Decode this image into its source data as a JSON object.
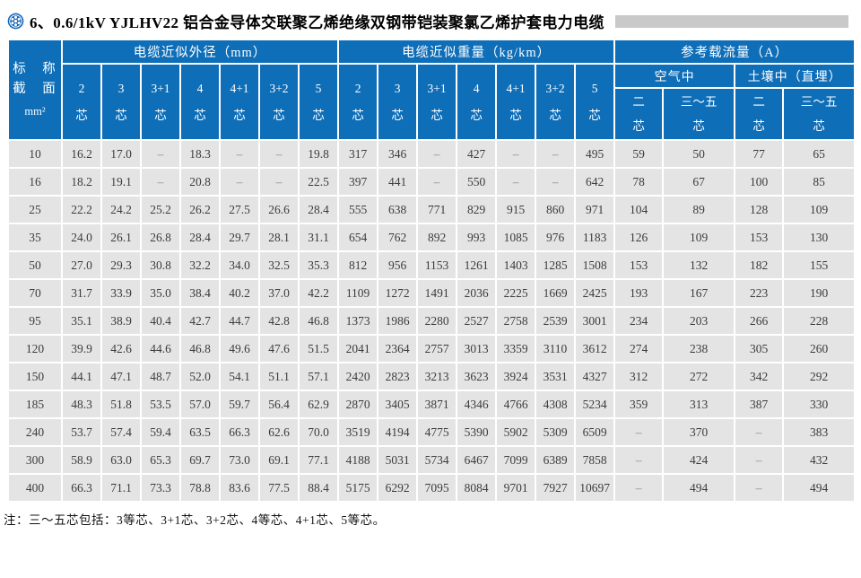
{
  "title": {
    "icon": "cable-cross-section-icon",
    "text": "6、0.6/1kV YJLHV22 铝合金导体交联聚乙烯绝缘双钢带铠装聚氯乙烯护套电力电缆"
  },
  "note": "注：三～五芯包括：3等芯、3+1芯、3+2芯、4等芯、4+1芯、5等芯。",
  "colors": {
    "header_blue": "#0e6eb8",
    "row_gray": "#e4e4e4",
    "title_rule_gray": "#c9c9c9",
    "icon_blue": "#1565b8"
  },
  "table": {
    "section_header": {
      "line1": "标　称",
      "line2": "截　面",
      "unit": "mm²"
    },
    "core_suffix": "芯",
    "groups": [
      {
        "label": "电缆近似外径（mm）",
        "cols": [
          "2",
          "3",
          "3+1",
          "4",
          "4+1",
          "3+2",
          "5"
        ]
      },
      {
        "label": "电缆近似重量（kg/km）",
        "cols": [
          "2",
          "3",
          "3+1",
          "4",
          "4+1",
          "3+2",
          "5"
        ]
      },
      {
        "label": "参考载流量（A）",
        "subgroups": [
          {
            "label": "空气中",
            "cols": [
              "二",
              "三～五"
            ]
          },
          {
            "label": "土壤中（直埋）",
            "cols": [
              "二",
              "三～五"
            ]
          }
        ]
      }
    ],
    "rows": [
      {
        "size": "10",
        "diameter": [
          "16.2",
          "17.0",
          "–",
          "18.3",
          "–",
          "–",
          "19.8"
        ],
        "weight": [
          "317",
          "346",
          "–",
          "427",
          "–",
          "–",
          "495"
        ],
        "ampacity": [
          "59",
          "50",
          "77",
          "65"
        ]
      },
      {
        "size": "16",
        "diameter": [
          "18.2",
          "19.1",
          "–",
          "20.8",
          "–",
          "–",
          "22.5"
        ],
        "weight": [
          "397",
          "441",
          "–",
          "550",
          "–",
          "–",
          "642"
        ],
        "ampacity": [
          "78",
          "67",
          "100",
          "85"
        ]
      },
      {
        "size": "25",
        "diameter": [
          "22.2",
          "24.2",
          "25.2",
          "26.2",
          "27.5",
          "26.6",
          "28.4"
        ],
        "weight": [
          "555",
          "638",
          "771",
          "829",
          "915",
          "860",
          "971"
        ],
        "ampacity": [
          "104",
          "89",
          "128",
          "109"
        ]
      },
      {
        "size": "35",
        "diameter": [
          "24.0",
          "26.1",
          "26.8",
          "28.4",
          "29.7",
          "28.1",
          "31.1"
        ],
        "weight": [
          "654",
          "762",
          "892",
          "993",
          "1085",
          "976",
          "1183"
        ],
        "ampacity": [
          "126",
          "109",
          "153",
          "130"
        ]
      },
      {
        "size": "50",
        "diameter": [
          "27.0",
          "29.3",
          "30.8",
          "32.2",
          "34.0",
          "32.5",
          "35.3"
        ],
        "weight": [
          "812",
          "956",
          "1153",
          "1261",
          "1403",
          "1285",
          "1508"
        ],
        "ampacity": [
          "153",
          "132",
          "182",
          "155"
        ]
      },
      {
        "size": "70",
        "diameter": [
          "31.7",
          "33.9",
          "35.0",
          "38.4",
          "40.2",
          "37.0",
          "42.2"
        ],
        "weight": [
          "1109",
          "1272",
          "1491",
          "2036",
          "2225",
          "1669",
          "2425"
        ],
        "ampacity": [
          "193",
          "167",
          "223",
          "190"
        ]
      },
      {
        "size": "95",
        "diameter": [
          "35.1",
          "38.9",
          "40.4",
          "42.7",
          "44.7",
          "42.8",
          "46.8"
        ],
        "weight": [
          "1373",
          "1986",
          "2280",
          "2527",
          "2758",
          "2539",
          "3001"
        ],
        "ampacity": [
          "234",
          "203",
          "266",
          "228"
        ]
      },
      {
        "size": "120",
        "diameter": [
          "39.9",
          "42.6",
          "44.6",
          "46.8",
          "49.6",
          "47.6",
          "51.5"
        ],
        "weight": [
          "2041",
          "2364",
          "2757",
          "3013",
          "3359",
          "3110",
          "3612"
        ],
        "ampacity": [
          "274",
          "238",
          "305",
          "260"
        ]
      },
      {
        "size": "150",
        "diameter": [
          "44.1",
          "47.1",
          "48.7",
          "52.0",
          "54.1",
          "51.1",
          "57.1"
        ],
        "weight": [
          "2420",
          "2823",
          "3213",
          "3623",
          "3924",
          "3531",
          "4327"
        ],
        "ampacity": [
          "312",
          "272",
          "342",
          "292"
        ]
      },
      {
        "size": "185",
        "diameter": [
          "48.3",
          "51.8",
          "53.5",
          "57.0",
          "59.7",
          "56.4",
          "62.9"
        ],
        "weight": [
          "2870",
          "3405",
          "3871",
          "4346",
          "4766",
          "4308",
          "5234"
        ],
        "ampacity": [
          "359",
          "313",
          "387",
          "330"
        ]
      },
      {
        "size": "240",
        "diameter": [
          "53.7",
          "57.4",
          "59.4",
          "63.5",
          "66.3",
          "62.6",
          "70.0"
        ],
        "weight": [
          "3519",
          "4194",
          "4775",
          "5390",
          "5902",
          "5309",
          "6509"
        ],
        "ampacity": [
          "–",
          "370",
          "–",
          "383"
        ]
      },
      {
        "size": "300",
        "diameter": [
          "58.9",
          "63.0",
          "65.3",
          "69.7",
          "73.0",
          "69.1",
          "77.1"
        ],
        "weight": [
          "4188",
          "5031",
          "5734",
          "6467",
          "7099",
          "6389",
          "7858"
        ],
        "ampacity": [
          "–",
          "424",
          "–",
          "432"
        ]
      },
      {
        "size": "400",
        "diameter": [
          "66.3",
          "71.1",
          "73.3",
          "78.8",
          "83.6",
          "77.5",
          "88.4"
        ],
        "weight": [
          "5175",
          "6292",
          "7095",
          "8084",
          "9701",
          "7927",
          "10697"
        ],
        "ampacity": [
          "–",
          "494",
          "–",
          "494"
        ]
      }
    ]
  }
}
